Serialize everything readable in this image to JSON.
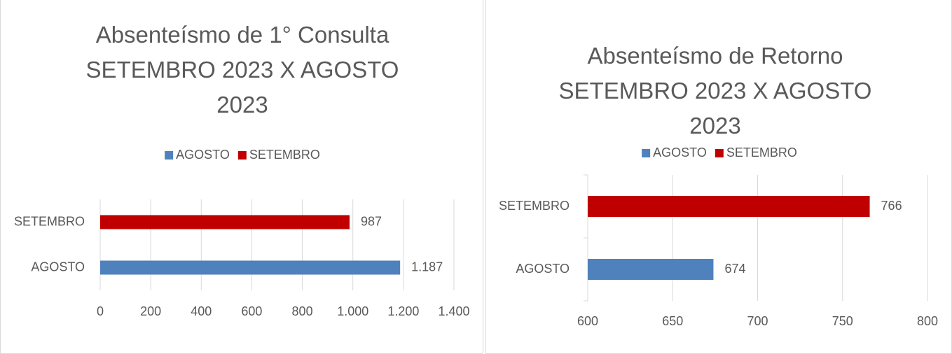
{
  "chart_data": [
    {
      "type": "barh",
      "title": "Absenteísmo de 1° Consulta SETEMBRO 2023 X AGOSTO 2023",
      "categories": [
        "AGOSTO",
        "SETEMBRO"
      ],
      "series": [
        {
          "name": "AGOSTO",
          "color": "#4f81bd",
          "values": [
            1187,
            null
          ],
          "value_labels": [
            "1.187",
            null
          ]
        },
        {
          "name": "SETEMBRO",
          "color": "#c00000",
          "values": [
            null,
            987
          ]
        }
      ],
      "xlim": [
        0,
        1400
      ],
      "xticks": [
        0,
        200,
        400,
        600,
        800,
        {
          "value": 1000,
          "label": "1.000"
        },
        {
          "value": 1200,
          "label": "1.200"
        },
        {
          "value": 1400,
          "label": "1.400"
        }
      ],
      "grid": true,
      "legend": "top"
    },
    {
      "type": "barh",
      "title": "Absenteísmo de Retorno SETEMBRO 2023 X AGOSTO 2023",
      "categories": [
        "AGOSTO",
        "SETEMBRO"
      ],
      "series": [
        {
          "name": "AGOSTO",
          "color": "#4f81bd",
          "values": [
            674,
            null
          ]
        },
        {
          "name": "SETEMBRO",
          "color": "#c00000",
          "values": [
            null,
            766
          ]
        }
      ],
      "xlim": [
        600,
        800
      ],
      "xticks": [
        600,
        650,
        700,
        750,
        800
      ],
      "grid": true,
      "legend": "top"
    }
  ]
}
